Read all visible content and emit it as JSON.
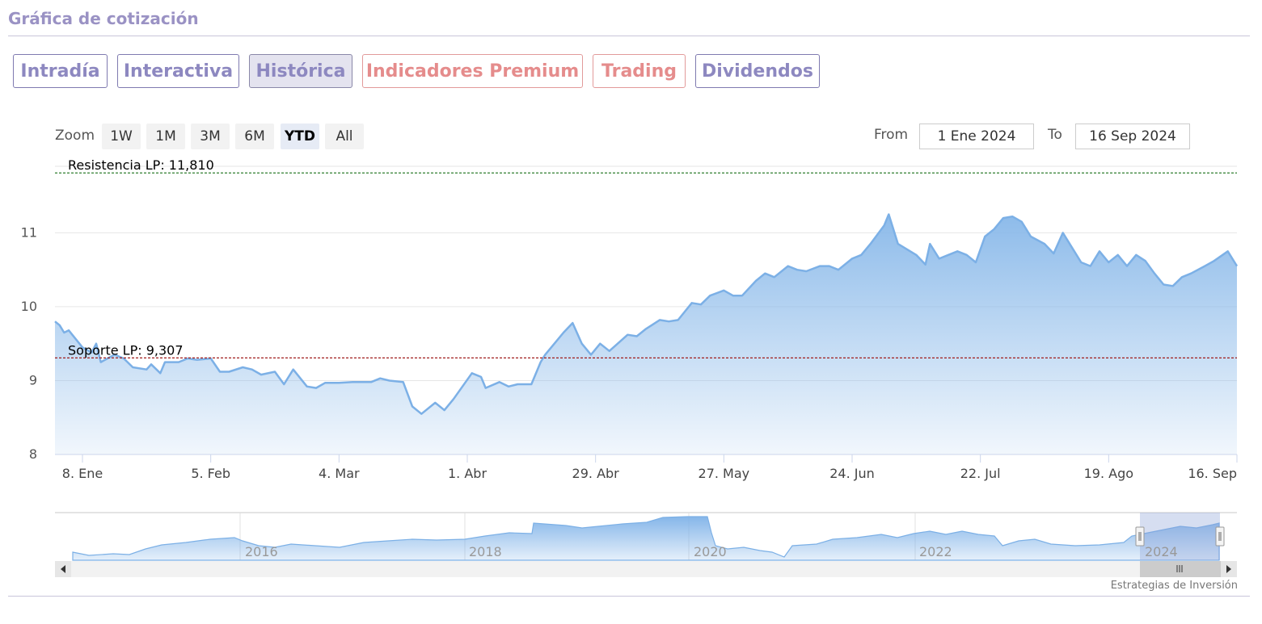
{
  "header": {
    "title": "Gráfica de cotización"
  },
  "tabs": [
    {
      "label": "Intradía",
      "state": "normal"
    },
    {
      "label": "Interactiva",
      "state": "normal"
    },
    {
      "label": "Histórica",
      "state": "active"
    },
    {
      "label": "Indicadores Premium",
      "state": "premium"
    },
    {
      "label": "Trading",
      "state": "premium"
    },
    {
      "label": "Dividendos",
      "state": "normal"
    }
  ],
  "range_selector": {
    "zoom_label": "Zoom",
    "buttons": [
      "1W",
      "1M",
      "3M",
      "6M",
      "YTD",
      "All"
    ],
    "selected": "YTD",
    "from_label": "From",
    "from_value": "1 Ene 2024",
    "to_label": "To",
    "to_value": "16 Sep 2024"
  },
  "colors": {
    "line": "#7cb0e6",
    "area_top": "#8dbbea",
    "resistance": "#2f7d2f",
    "support": "#a01c1c",
    "accent": "#9a92c4"
  },
  "chart_data": {
    "type": "area",
    "yticks": [
      8,
      9,
      10,
      11
    ],
    "ylim": [
      8,
      11.9
    ],
    "xticks": [
      {
        "label": "8. Ene",
        "x": "2024-01-08"
      },
      {
        "label": "5. Feb",
        "x": "2024-02-05"
      },
      {
        "label": "4. Mar",
        "x": "2024-03-04"
      },
      {
        "label": "1. Abr",
        "x": "2024-04-01"
      },
      {
        "label": "29. Abr",
        "x": "2024-04-29"
      },
      {
        "label": "27. May",
        "x": "2024-05-27"
      },
      {
        "label": "24. Jun",
        "x": "2024-06-24"
      },
      {
        "label": "22. Jul",
        "x": "2024-07-22"
      },
      {
        "label": "19. Ago",
        "x": "2024-08-19"
      },
      {
        "label": "16. Sep",
        "x": "2024-09-16"
      }
    ],
    "xlim": [
      "2024-01-02",
      "2024-09-16"
    ],
    "series": [
      {
        "points": [
          [
            "2024-01-02",
            9.8
          ],
          [
            "2024-01-03",
            9.75
          ],
          [
            "2024-01-04",
            9.65
          ],
          [
            "2024-01-05",
            9.68
          ],
          [
            "2024-01-08",
            9.45
          ],
          [
            "2024-01-10",
            9.38
          ],
          [
            "2024-01-11",
            9.5
          ],
          [
            "2024-01-12",
            9.25
          ],
          [
            "2024-01-15",
            9.35
          ],
          [
            "2024-01-17",
            9.3
          ],
          [
            "2024-01-19",
            9.18
          ],
          [
            "2024-01-22",
            9.15
          ],
          [
            "2024-01-23",
            9.22
          ],
          [
            "2024-01-25",
            9.1
          ],
          [
            "2024-01-26",
            9.25
          ],
          [
            "2024-01-29",
            9.25
          ],
          [
            "2024-01-31",
            9.3
          ],
          [
            "2024-02-02",
            9.28
          ],
          [
            "2024-02-05",
            9.3
          ],
          [
            "2024-02-07",
            9.12
          ],
          [
            "2024-02-09",
            9.12
          ],
          [
            "2024-02-12",
            9.18
          ],
          [
            "2024-02-14",
            9.15
          ],
          [
            "2024-02-16",
            9.08
          ],
          [
            "2024-02-19",
            9.12
          ],
          [
            "2024-02-21",
            8.95
          ],
          [
            "2024-02-23",
            9.15
          ],
          [
            "2024-02-26",
            8.92
          ],
          [
            "2024-02-28",
            8.9
          ],
          [
            "2024-03-01",
            8.97
          ],
          [
            "2024-03-04",
            8.97
          ],
          [
            "2024-03-07",
            8.98
          ],
          [
            "2024-03-11",
            8.98
          ],
          [
            "2024-03-13",
            9.03
          ],
          [
            "2024-03-15",
            9.0
          ],
          [
            "2024-03-18",
            8.98
          ],
          [
            "2024-03-20",
            8.65
          ],
          [
            "2024-03-22",
            8.55
          ],
          [
            "2024-03-25",
            8.7
          ],
          [
            "2024-03-27",
            8.6
          ],
          [
            "2024-03-29",
            8.75
          ],
          [
            "2024-04-02",
            9.1
          ],
          [
            "2024-04-04",
            9.05
          ],
          [
            "2024-04-05",
            8.9
          ],
          [
            "2024-04-08",
            8.98
          ],
          [
            "2024-04-10",
            8.92
          ],
          [
            "2024-04-12",
            8.95
          ],
          [
            "2024-04-15",
            8.95
          ],
          [
            "2024-04-17",
            9.25
          ],
          [
            "2024-04-18",
            9.35
          ],
          [
            "2024-04-20",
            9.5
          ],
          [
            "2024-04-22",
            9.65
          ],
          [
            "2024-04-24",
            9.78
          ],
          [
            "2024-04-26",
            9.5
          ],
          [
            "2024-04-28",
            9.35
          ],
          [
            "2024-04-30",
            9.5
          ],
          [
            "2024-05-02",
            9.4
          ],
          [
            "2024-05-06",
            9.62
          ],
          [
            "2024-05-08",
            9.6
          ],
          [
            "2024-05-10",
            9.7
          ],
          [
            "2024-05-13",
            9.82
          ],
          [
            "2024-05-15",
            9.8
          ],
          [
            "2024-05-17",
            9.82
          ],
          [
            "2024-05-20",
            10.05
          ],
          [
            "2024-05-22",
            10.03
          ],
          [
            "2024-05-24",
            10.15
          ],
          [
            "2024-05-27",
            10.22
          ],
          [
            "2024-05-29",
            10.15
          ],
          [
            "2024-05-31",
            10.15
          ],
          [
            "2024-06-03",
            10.35
          ],
          [
            "2024-06-05",
            10.45
          ],
          [
            "2024-06-07",
            10.4
          ],
          [
            "2024-06-10",
            10.55
          ],
          [
            "2024-06-12",
            10.5
          ],
          [
            "2024-06-14",
            10.48
          ],
          [
            "2024-06-17",
            10.55
          ],
          [
            "2024-06-19",
            10.55
          ],
          [
            "2024-06-21",
            10.5
          ],
          [
            "2024-06-24",
            10.65
          ],
          [
            "2024-06-26",
            10.7
          ],
          [
            "2024-06-28",
            10.85
          ],
          [
            "2024-07-01",
            11.1
          ],
          [
            "2024-07-02",
            11.25
          ],
          [
            "2024-07-04",
            10.85
          ],
          [
            "2024-07-08",
            10.7
          ],
          [
            "2024-07-10",
            10.57
          ],
          [
            "2024-07-11",
            10.85
          ],
          [
            "2024-07-13",
            10.65
          ],
          [
            "2024-07-15",
            10.7
          ],
          [
            "2024-07-17",
            10.75
          ],
          [
            "2024-07-19",
            10.7
          ],
          [
            "2024-07-21",
            10.6
          ],
          [
            "2024-07-23",
            10.95
          ],
          [
            "2024-07-25",
            11.05
          ],
          [
            "2024-07-27",
            11.2
          ],
          [
            "2024-07-29",
            11.22
          ],
          [
            "2024-07-31",
            11.15
          ],
          [
            "2024-08-02",
            10.95
          ],
          [
            "2024-08-05",
            10.85
          ],
          [
            "2024-08-07",
            10.72
          ],
          [
            "2024-08-09",
            11.0
          ],
          [
            "2024-08-11",
            10.8
          ],
          [
            "2024-08-13",
            10.6
          ],
          [
            "2024-08-15",
            10.55
          ],
          [
            "2024-08-17",
            10.75
          ],
          [
            "2024-08-19",
            10.6
          ],
          [
            "2024-08-21",
            10.7
          ],
          [
            "2024-08-23",
            10.55
          ],
          [
            "2024-08-25",
            10.7
          ],
          [
            "2024-08-27",
            10.62
          ],
          [
            "2024-08-29",
            10.45
          ],
          [
            "2024-08-31",
            10.3
          ],
          [
            "2024-09-02",
            10.28
          ],
          [
            "2024-09-04",
            10.4
          ],
          [
            "2024-09-06",
            10.45
          ],
          [
            "2024-09-09",
            10.55
          ],
          [
            "2024-09-11",
            10.62
          ],
          [
            "2024-09-14",
            10.75
          ],
          [
            "2024-09-16",
            10.55
          ]
        ]
      }
    ],
    "plot_lines": [
      {
        "label": "Resistencia LP: 11,810",
        "value": 11.81
      },
      {
        "label": "Soporte LP: 9,307",
        "value": 9.307
      }
    ]
  },
  "navigator": {
    "years": [
      "2016",
      "2018",
      "2020",
      "2022",
      "2024"
    ],
    "credit": "Estrategias de Inversión"
  }
}
